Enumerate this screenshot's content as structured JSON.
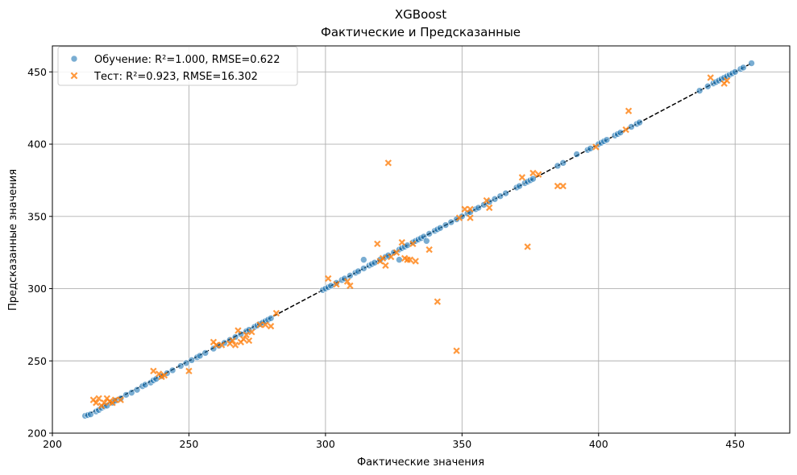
{
  "chart_data": {
    "type": "scatter",
    "title": "XGBoost",
    "subtitle": "Фактические и Предсказанные",
    "xlabel": "Фактические значения",
    "ylabel": "Предсказанные значения",
    "xlim": [
      200,
      470
    ],
    "ylim": [
      200,
      468
    ],
    "xticks": [
      200,
      250,
      300,
      350,
      400,
      450
    ],
    "yticks": [
      200,
      250,
      300,
      350,
      400,
      450
    ],
    "grid": true,
    "legend_position": "top-left",
    "reference_line": {
      "style": "dashed",
      "color": "#000000",
      "from": [
        212,
        212
      ],
      "to": [
        456,
        456
      ]
    },
    "series": [
      {
        "name": "Обучение: R²=1.000, RMSE=0.622",
        "marker": "circle",
        "color": "#1f77b4",
        "points": [
          [
            212,
            212
          ],
          [
            213,
            212.5
          ],
          [
            214,
            213
          ],
          [
            216,
            215
          ],
          [
            217,
            216
          ],
          [
            218,
            217.5
          ],
          [
            219,
            218.5
          ],
          [
            220,
            219
          ],
          [
            222,
            221
          ],
          [
            223,
            222.5
          ],
          [
            225,
            224
          ],
          [
            227,
            226.5
          ],
          [
            229,
            228
          ],
          [
            231,
            230
          ],
          [
            233,
            232.5
          ],
          [
            234,
            233.5
          ],
          [
            236,
            235
          ],
          [
            237,
            236.5
          ],
          [
            238,
            237.5
          ],
          [
            240,
            239.5
          ],
          [
            242,
            241.5
          ],
          [
            244,
            243.5
          ],
          [
            247,
            246.5
          ],
          [
            249,
            248.5
          ],
          [
            251,
            250.5
          ],
          [
            253,
            252.5
          ],
          [
            254,
            253.5
          ],
          [
            256,
            255.5
          ],
          [
            259,
            258.5
          ],
          [
            261,
            260.5
          ],
          [
            263,
            262.5
          ],
          [
            265,
            264.5
          ],
          [
            267,
            266.5
          ],
          [
            269,
            268.5
          ],
          [
            271,
            270.5
          ],
          [
            272,
            271.5
          ],
          [
            274,
            273.5
          ],
          [
            275,
            274.5
          ],
          [
            276,
            275.5
          ],
          [
            277,
            276.5
          ],
          [
            278,
            277.5
          ],
          [
            279,
            278.5
          ],
          [
            280,
            279.5
          ],
          [
            299,
            299
          ],
          [
            300,
            300
          ],
          [
            301,
            301
          ],
          [
            302,
            302
          ],
          [
            304,
            304
          ],
          [
            306,
            306
          ],
          [
            307,
            307
          ],
          [
            309,
            309
          ],
          [
            311,
            311
          ],
          [
            312,
            312
          ],
          [
            314,
            314
          ],
          [
            314,
            320
          ],
          [
            316,
            316
          ],
          [
            317,
            317
          ],
          [
            318,
            318
          ],
          [
            320,
            320
          ],
          [
            322,
            322
          ],
          [
            323,
            323
          ],
          [
            325,
            325
          ],
          [
            327,
            327
          ],
          [
            327,
            320
          ],
          [
            328,
            328
          ],
          [
            329,
            329
          ],
          [
            330,
            330
          ],
          [
            332,
            332
          ],
          [
            333,
            333
          ],
          [
            334,
            334
          ],
          [
            335,
            335
          ],
          [
            336,
            336
          ],
          [
            337,
            333
          ],
          [
            338,
            338
          ],
          [
            340,
            340
          ],
          [
            341,
            341
          ],
          [
            342,
            342
          ],
          [
            344,
            344
          ],
          [
            346,
            346
          ],
          [
            348,
            348
          ],
          [
            350,
            350
          ],
          [
            352,
            352
          ],
          [
            353,
            353
          ],
          [
            355,
            355
          ],
          [
            356,
            356
          ],
          [
            358,
            358
          ],
          [
            360,
            360
          ],
          [
            362,
            362
          ],
          [
            364,
            364
          ],
          [
            366,
            366
          ],
          [
            370,
            370
          ],
          [
            371,
            371
          ],
          [
            373,
            373
          ],
          [
            374,
            374
          ],
          [
            375,
            375
          ],
          [
            376,
            376
          ],
          [
            385,
            385
          ],
          [
            387,
            387
          ],
          [
            392,
            393
          ],
          [
            396,
            396
          ],
          [
            397,
            397
          ],
          [
            400,
            400
          ],
          [
            401,
            401
          ],
          [
            402,
            402
          ],
          [
            403,
            403
          ],
          [
            406,
            406
          ],
          [
            407,
            407
          ],
          [
            408,
            408
          ],
          [
            412,
            412
          ],
          [
            414,
            414
          ],
          [
            415,
            415
          ],
          [
            437,
            437
          ],
          [
            440,
            440
          ],
          [
            442,
            442
          ],
          [
            443,
            443
          ],
          [
            444,
            444
          ],
          [
            445,
            445
          ],
          [
            446,
            446
          ],
          [
            447,
            447
          ],
          [
            448,
            448
          ],
          [
            449,
            449
          ],
          [
            450,
            450
          ],
          [
            452,
            452
          ],
          [
            453,
            453
          ],
          [
            456,
            456
          ]
        ]
      },
      {
        "name": "Тест: R²=0.923, RMSE=16.302",
        "marker": "x",
        "color": "#ff7f0e",
        "points": [
          [
            215,
            223
          ],
          [
            216,
            221
          ],
          [
            217,
            224
          ],
          [
            218,
            219
          ],
          [
            219,
            221
          ],
          [
            220,
            224
          ],
          [
            221,
            222
          ],
          [
            222,
            221
          ],
          [
            223,
            223
          ],
          [
            225,
            223
          ],
          [
            237,
            243
          ],
          [
            239,
            241
          ],
          [
            240,
            239
          ],
          [
            241,
            240
          ],
          [
            250,
            243
          ],
          [
            259,
            263
          ],
          [
            260,
            261
          ],
          [
            262,
            261
          ],
          [
            265,
            262
          ],
          [
            266,
            264
          ],
          [
            267,
            261
          ],
          [
            268,
            271
          ],
          [
            269,
            263
          ],
          [
            270,
            265
          ],
          [
            271,
            268
          ],
          [
            272,
            264
          ],
          [
            273,
            270
          ],
          [
            276,
            275
          ],
          [
            278,
            275
          ],
          [
            280,
            274
          ],
          [
            282,
            283
          ],
          [
            301,
            307
          ],
          [
            304,
            303
          ],
          [
            308,
            305
          ],
          [
            309,
            302
          ],
          [
            319,
            331
          ],
          [
            320,
            319
          ],
          [
            321,
            321
          ],
          [
            322,
            316
          ],
          [
            323,
            387
          ],
          [
            324,
            322
          ],
          [
            326,
            325
          ],
          [
            328,
            332
          ],
          [
            329,
            321
          ],
          [
            330,
            320
          ],
          [
            331,
            320
          ],
          [
            332,
            331
          ],
          [
            333,
            319
          ],
          [
            338,
            327
          ],
          [
            341,
            291
          ],
          [
            348,
            257
          ],
          [
            349,
            349
          ],
          [
            351,
            355
          ],
          [
            353,
            355
          ],
          [
            353,
            349
          ],
          [
            359,
            361
          ],
          [
            360,
            356
          ],
          [
            372,
            377
          ],
          [
            374,
            329
          ],
          [
            376,
            380
          ],
          [
            378,
            379
          ],
          [
            385,
            371
          ],
          [
            387,
            371
          ],
          [
            399,
            398
          ],
          [
            410,
            410
          ],
          [
            411,
            423
          ],
          [
            441,
            446
          ],
          [
            446,
            442
          ],
          [
            447,
            444
          ]
        ]
      }
    ]
  }
}
